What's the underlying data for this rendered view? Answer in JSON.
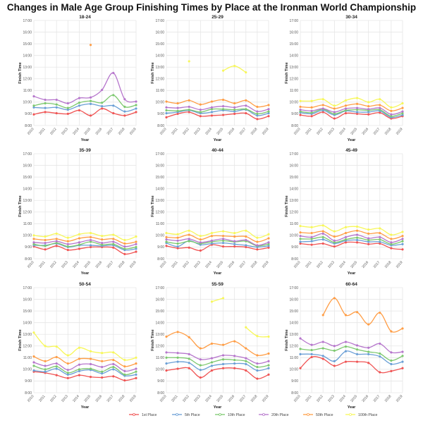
{
  "chart_data": {
    "type": "line",
    "title": "Changes in Male Age Group Finishing Times by Place at the Ironman World Championship",
    "xlabel": "Year",
    "ylabel": "Finish Time",
    "x": [
      "2010",
      "2011",
      "2012",
      "2013",
      "2014",
      "2015",
      "2016",
      "2017",
      "2018",
      "2019"
    ],
    "ylim": [
      8,
      17
    ],
    "y_ticks": [
      "8:00",
      "9:00",
      "10:00",
      "11:00",
      "12:00",
      "13:00",
      "14:00",
      "15:00",
      "16:00",
      "17:00"
    ],
    "value_units": "hours",
    "grid": true,
    "legend_position": "bottom",
    "series_names": [
      "1st Place",
      "5th Place",
      "10th Place",
      "20th Place",
      "50th Place",
      "100th Place"
    ],
    "colors": [
      "#f05454",
      "#6a9fd6",
      "#7cc86e",
      "#b676cc",
      "#ff9d45",
      "#f7f75a"
    ],
    "panels": [
      {
        "title": "18-24",
        "series": [
          [
            8.95,
            9.15,
            9.05,
            9.0,
            9.3,
            8.85,
            9.45,
            9.05,
            8.85,
            9.15
          ],
          [
            9.55,
            9.5,
            9.55,
            9.35,
            9.7,
            9.85,
            9.65,
            9.7,
            9.2,
            9.45
          ],
          [
            9.7,
            9.9,
            9.8,
            9.5,
            9.95,
            10.1,
            9.95,
            10.6,
            9.6,
            9.75
          ],
          [
            10.5,
            10.2,
            10.2,
            9.9,
            10.35,
            10.4,
            11.05,
            12.5,
            10.25,
            10.05
          ],
          [
            null,
            null,
            null,
            null,
            null,
            14.9,
            null,
            null,
            null,
            null
          ],
          [
            null,
            null,
            null,
            null,
            null,
            null,
            null,
            null,
            null,
            null
          ]
        ]
      },
      {
        "title": "25-29",
        "series": [
          [
            8.7,
            9.0,
            9.15,
            8.8,
            8.85,
            8.9,
            9.0,
            9.05,
            8.55,
            8.8
          ],
          [
            9.05,
            9.15,
            9.3,
            9.05,
            9.15,
            9.3,
            9.2,
            9.35,
            8.85,
            9.05
          ],
          [
            9.3,
            9.25,
            9.35,
            9.15,
            9.4,
            9.4,
            9.35,
            9.4,
            9.0,
            9.2
          ],
          [
            9.55,
            9.5,
            9.6,
            9.35,
            9.55,
            9.65,
            9.55,
            9.7,
            9.2,
            9.4
          ],
          [
            10.05,
            9.9,
            10.15,
            9.8,
            10.05,
            10.2,
            9.9,
            10.15,
            9.6,
            9.75
          ],
          [
            null,
            null,
            13.5,
            null,
            null,
            12.7,
            13.1,
            12.55,
            null,
            null
          ]
        ]
      },
      {
        "title": "30-34",
        "series": [
          [
            8.9,
            8.8,
            9.15,
            8.6,
            9.05,
            9.0,
            8.95,
            9.1,
            8.6,
            8.8
          ],
          [
            9.1,
            9.0,
            9.3,
            8.9,
            9.25,
            9.15,
            9.15,
            9.25,
            8.7,
            8.9
          ],
          [
            9.2,
            9.1,
            9.4,
            9.0,
            9.3,
            9.35,
            9.3,
            9.35,
            8.8,
            9.05
          ],
          [
            9.35,
            9.25,
            9.45,
            9.15,
            9.45,
            9.5,
            9.4,
            9.5,
            8.95,
            9.2
          ],
          [
            9.6,
            9.55,
            9.75,
            9.45,
            9.7,
            9.85,
            9.65,
            9.75,
            9.25,
            9.5
          ],
          [
            10.1,
            10.1,
            10.25,
            9.7,
            10.15,
            10.35,
            10.0,
            10.25,
            9.55,
            9.9
          ]
        ]
      },
      {
        "title": "35-39",
        "series": [
          [
            9.05,
            8.8,
            9.1,
            8.75,
            8.85,
            9.0,
            9.0,
            8.95,
            8.4,
            8.6
          ],
          [
            9.15,
            9.15,
            9.3,
            9.0,
            9.15,
            9.15,
            9.1,
            9.15,
            8.75,
            8.85
          ],
          [
            9.25,
            9.1,
            9.35,
            9.05,
            9.2,
            9.45,
            9.2,
            9.25,
            8.85,
            9.0
          ],
          [
            9.4,
            9.35,
            9.5,
            9.25,
            9.4,
            9.6,
            9.35,
            9.45,
            9.05,
            9.25
          ],
          [
            9.7,
            9.6,
            9.7,
            9.5,
            9.75,
            9.85,
            9.65,
            9.7,
            9.3,
            9.45
          ],
          [
            10.0,
            9.9,
            10.15,
            9.8,
            10.1,
            10.2,
            9.95,
            10.05,
            9.6,
            9.9
          ]
        ]
      },
      {
        "title": "40-44",
        "series": [
          [
            9.1,
            8.9,
            8.95,
            8.7,
            9.2,
            9.05,
            9.05,
            9.0,
            8.8,
            8.95
          ],
          [
            9.35,
            9.05,
            9.55,
            9.2,
            9.3,
            9.35,
            9.25,
            9.15,
            9.0,
            9.1
          ],
          [
            9.45,
            9.3,
            9.5,
            9.3,
            9.45,
            9.55,
            9.45,
            9.5,
            9.1,
            9.25
          ],
          [
            9.65,
            9.55,
            9.7,
            9.4,
            9.55,
            9.7,
            9.5,
            9.6,
            9.15,
            9.4
          ],
          [
            9.85,
            9.8,
            10.05,
            9.65,
            9.95,
            9.95,
            9.9,
            9.9,
            9.45,
            9.75
          ],
          [
            10.2,
            10.1,
            10.4,
            9.95,
            10.2,
            10.35,
            10.2,
            10.4,
            9.8,
            10.1
          ]
        ]
      },
      {
        "title": "45-49",
        "series": [
          [
            9.3,
            9.2,
            9.3,
            9.05,
            9.4,
            9.4,
            9.25,
            9.3,
            8.9,
            8.8
          ],
          [
            9.45,
            9.5,
            9.65,
            9.3,
            9.55,
            9.6,
            9.45,
            9.45,
            9.15,
            9.25
          ],
          [
            9.7,
            9.7,
            9.85,
            9.4,
            9.65,
            9.8,
            9.6,
            9.65,
            9.25,
            9.5
          ],
          [
            9.95,
            9.85,
            10.15,
            9.55,
            9.85,
            10.05,
            9.75,
            9.85,
            9.4,
            9.7
          ],
          [
            10.25,
            10.2,
            10.35,
            9.9,
            10.2,
            10.4,
            10.15,
            10.2,
            9.7,
            9.95
          ],
          [
            10.8,
            10.7,
            10.85,
            10.35,
            10.7,
            10.75,
            10.5,
            10.6,
            10.05,
            10.3
          ]
        ]
      },
      {
        "title": "50-54",
        "series": [
          [
            9.8,
            9.7,
            9.5,
            9.25,
            9.5,
            9.35,
            9.3,
            9.4,
            9.05,
            9.25
          ],
          [
            9.9,
            9.8,
            10.05,
            9.55,
            9.85,
            9.95,
            9.65,
            10.0,
            9.45,
            9.55
          ],
          [
            10.3,
            10.0,
            10.25,
            9.7,
            10.0,
            10.05,
            9.8,
            10.2,
            9.55,
            9.8
          ],
          [
            10.6,
            10.3,
            10.5,
            9.95,
            10.4,
            10.45,
            10.2,
            10.45,
            9.85,
            10.05
          ],
          [
            11.1,
            10.7,
            11.05,
            10.5,
            10.9,
            10.9,
            10.7,
            10.8,
            10.25,
            10.5
          ],
          [
            13.15,
            12.0,
            11.95,
            11.2,
            11.85,
            11.55,
            11.4,
            11.45,
            10.8,
            11.0
          ]
        ]
      },
      {
        "title": "55-59",
        "series": [
          [
            9.9,
            10.05,
            10.1,
            9.3,
            9.9,
            10.1,
            10.1,
            9.9,
            9.2,
            9.55
          ],
          [
            10.5,
            10.65,
            10.55,
            9.95,
            10.3,
            10.45,
            10.5,
            10.45,
            9.9,
            10.1
          ],
          [
            11.0,
            11.0,
            10.9,
            10.35,
            10.6,
            10.85,
            10.8,
            10.7,
            10.2,
            10.35
          ],
          [
            11.45,
            11.4,
            11.3,
            10.85,
            10.95,
            11.2,
            11.15,
            10.95,
            10.5,
            10.7
          ],
          [
            12.8,
            13.2,
            12.75,
            11.8,
            12.2,
            12.1,
            12.4,
            11.8,
            11.2,
            11.35
          ],
          [
            null,
            null,
            null,
            null,
            15.8,
            16.1,
            null,
            13.6,
            12.85,
            12.8
          ]
        ]
      },
      {
        "title": "60-64",
        "series": [
          [
            10.1,
            11.05,
            10.9,
            10.3,
            10.65,
            10.65,
            10.55,
            9.75,
            9.85,
            10.1
          ],
          [
            11.3,
            11.3,
            11.15,
            10.7,
            11.55,
            11.3,
            11.3,
            11.1,
            10.45,
            10.65
          ],
          [
            11.75,
            11.65,
            11.8,
            11.6,
            11.95,
            11.7,
            11.5,
            11.35,
            10.75,
            11.15
          ],
          [
            12.65,
            12.1,
            12.35,
            12.0,
            12.35,
            12.05,
            11.85,
            12.2,
            11.45,
            11.5
          ],
          [
            null,
            null,
            14.65,
            16.1,
            14.65,
            14.9,
            13.85,
            14.85,
            13.25,
            13.5
          ],
          [
            null,
            null,
            null,
            null,
            null,
            null,
            null,
            null,
            null,
            null
          ]
        ]
      }
    ]
  }
}
